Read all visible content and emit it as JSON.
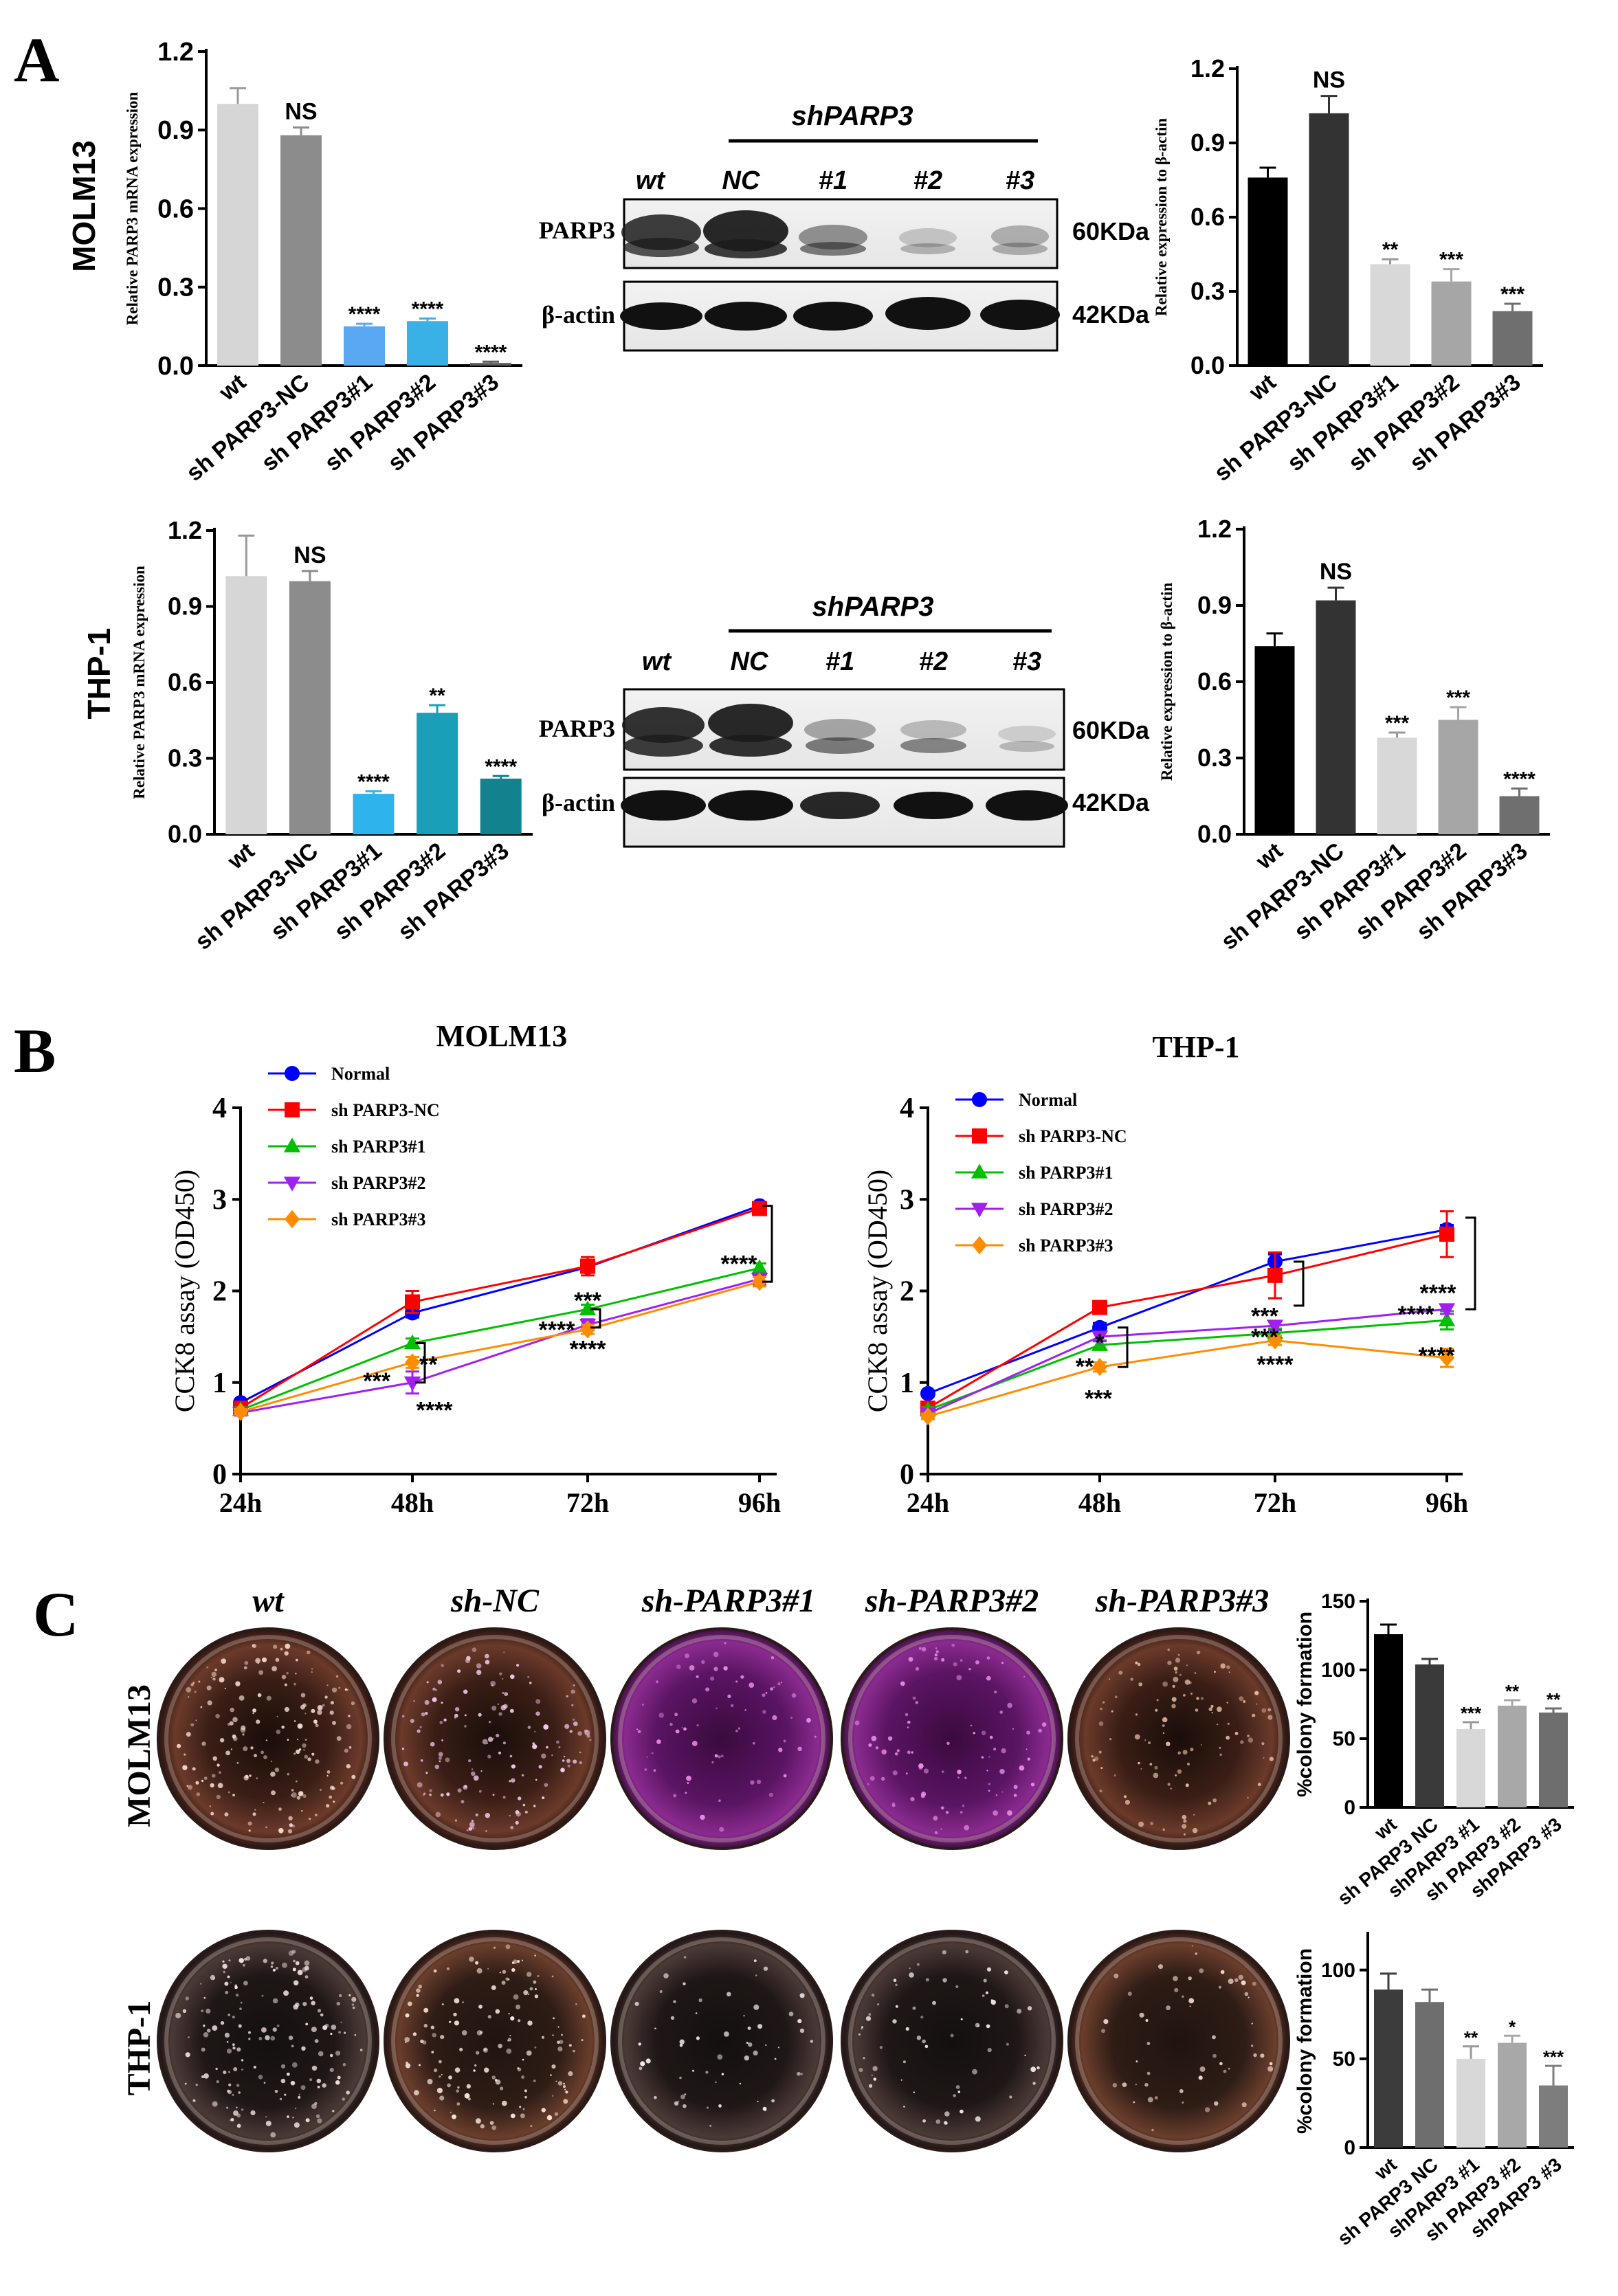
{
  "panels": {
    "A": "A",
    "B": "B",
    "C": "C"
  },
  "panel_a": {
    "row_labels": [
      "MOLM13",
      "THP-1"
    ],
    "blot_headers": {
      "group": "shPARP3",
      "lanes": [
        "wt",
        "NC",
        "#1",
        "#2",
        "#3"
      ]
    },
    "blot_rows": {
      "protein": [
        "PARP3",
        "β-actin"
      ],
      "kda": [
        "60KDa",
        "42KDa"
      ]
    }
  },
  "panel_c": {
    "plate_labels": [
      "wt",
      "sh-NC",
      "sh-PARP3#1",
      "sh-PARP3#2",
      "sh-PARP3#3"
    ],
    "row_labels": [
      "MOLM13",
      "THP-1"
    ]
  },
  "colors": {
    "qpcr_molm13": [
      "#d6d6d6",
      "#8c8c8c",
      "#5aa7f2",
      "#3ab1e6",
      "#5b5b5b"
    ],
    "qpcr_thp1": [
      "#d6d6d6",
      "#8c8c8c",
      "#2fb3ec",
      "#19a0b8",
      "#13828f"
    ],
    "wb_bars": [
      "#000000",
      "#333333",
      "#d8d8d8",
      "#a6a6a6",
      "#6f6f6f"
    ],
    "colony_molm13": [
      "#000000",
      "#3a3a3a",
      "#d8d8d8",
      "#a8a8a8",
      "#6e6e6e"
    ],
    "colony_thp1": [
      "#3c3c3c",
      "#6e6e6e",
      "#d8d8d8",
      "#a8a8a8",
      "#7d7d7d"
    ],
    "cck8": [
      "#0000ff",
      "#ff0000",
      "#00c000",
      "#a020f0",
      "#ff8c00"
    ]
  },
  "chart_data": [
    {
      "id": "qpcr_molm13",
      "type": "bar",
      "ylabel": "Relative PARP3 mRNA expression",
      "categories": [
        "wt",
        "sh PARP3-NC",
        "sh PARP3#1",
        "sh PARP3#2",
        "sh PARP3#3"
      ],
      "values": [
        1.0,
        0.88,
        0.15,
        0.17,
        0.01
      ],
      "errors": [
        0.06,
        0.03,
        0.01,
        0.01,
        0.005
      ],
      "annotations": [
        "",
        "NS",
        "****",
        "****",
        "****"
      ],
      "ylim": [
        0,
        1.2
      ],
      "yticks": [
        "0.0",
        "0.3",
        "0.6",
        "0.9",
        "1.2"
      ]
    },
    {
      "id": "wb_molm13",
      "type": "bar",
      "ylabel": "Relative expression to β-actin",
      "categories": [
        "wt",
        "sh PARP3-NC",
        "sh PARP3#1",
        "sh PARP3#2",
        "sh PARP3#3"
      ],
      "values": [
        0.76,
        1.02,
        0.41,
        0.34,
        0.22
      ],
      "errors": [
        0.04,
        0.07,
        0.02,
        0.05,
        0.03
      ],
      "annotations": [
        "",
        "NS",
        "**",
        "***",
        "***"
      ],
      "ylim": [
        0,
        1.2
      ],
      "yticks": [
        "0.0",
        "0.3",
        "0.6",
        "0.9",
        "1.2"
      ]
    },
    {
      "id": "qpcr_thp1",
      "type": "bar",
      "ylabel": "Relative PARP3 mRNA expression",
      "categories": [
        "wt",
        "sh PARP3-NC",
        "sh PARP3#1",
        "sh PARP3#2",
        "sh PARP3#3"
      ],
      "values": [
        1.02,
        1.0,
        0.16,
        0.48,
        0.22
      ],
      "errors": [
        0.16,
        0.04,
        0.01,
        0.03,
        0.01
      ],
      "annotations": [
        "",
        "NS",
        "****",
        "**",
        "****"
      ],
      "ylim": [
        0,
        1.2
      ],
      "yticks": [
        "0.0",
        "0.3",
        "0.6",
        "0.9",
        "1.2"
      ]
    },
    {
      "id": "wb_thp1",
      "type": "bar",
      "ylabel": "Relative expression to β-actin",
      "categories": [
        "wt",
        "sh PARP3-NC",
        "sh PARP3#1",
        "sh PARP3#2",
        "sh PARP3#3"
      ],
      "values": [
        0.74,
        0.92,
        0.38,
        0.45,
        0.15
      ],
      "errors": [
        0.05,
        0.05,
        0.02,
        0.05,
        0.03
      ],
      "annotations": [
        "",
        "NS",
        "***",
        "***",
        "****"
      ],
      "ylim": [
        0,
        1.2
      ],
      "yticks": [
        "0.0",
        "0.3",
        "0.6",
        "0.9",
        "1.2"
      ]
    },
    {
      "id": "cck8_molm13",
      "type": "line",
      "title": "MOLM13",
      "ylabel": "CCK8 assay (OD450)",
      "x": [
        "24h",
        "48h",
        "72h",
        "96h"
      ],
      "ylim": [
        0,
        4
      ],
      "yticks": [
        "0",
        "1",
        "2",
        "3",
        "4"
      ],
      "series": [
        {
          "name": "Normal",
          "values": [
            0.78,
            1.76,
            2.26,
            2.93
          ],
          "errors": [
            0.03,
            0.05,
            0.05,
            0.04
          ]
        },
        {
          "name": "sh PARP3-NC",
          "values": [
            0.72,
            1.88,
            2.27,
            2.9
          ],
          "errors": [
            0.03,
            0.12,
            0.1,
            0.05
          ]
        },
        {
          "name": "sh PARP3#1",
          "values": [
            0.7,
            1.43,
            1.8,
            2.25
          ],
          "errors": [
            0.03,
            0.05,
            0.05,
            0.05
          ]
        },
        {
          "name": "sh PARP3#2",
          "values": [
            0.67,
            1.0,
            1.63,
            2.13
          ],
          "errors": [
            0.03,
            0.12,
            0.06,
            0.06
          ]
        },
        {
          "name": "sh PARP3#3",
          "values": [
            0.68,
            1.22,
            1.58,
            2.1
          ],
          "errors": [
            0.03,
            0.06,
            0.05,
            0.05
          ]
        }
      ],
      "annotations": [
        {
          "x": "48h",
          "text": "**"
        },
        {
          "x": "48h",
          "text": "***"
        },
        {
          "x": "48h",
          "text": "****"
        },
        {
          "x": "72h",
          "text": "***"
        },
        {
          "x": "72h",
          "text": "****"
        },
        {
          "x": "72h",
          "text": "****"
        },
        {
          "x": "96h",
          "text": "****"
        }
      ]
    },
    {
      "id": "cck8_thp1",
      "type": "line",
      "title": "THP-1",
      "ylabel": "CCK8 assay (OD450)",
      "x": [
        "24h",
        "48h",
        "72h",
        "96h"
      ],
      "ylim": [
        0,
        4
      ],
      "yticks": [
        "0",
        "1",
        "2",
        "3",
        "4"
      ],
      "series": [
        {
          "name": "Normal",
          "values": [
            0.88,
            1.6,
            2.32,
            2.67
          ],
          "errors": [
            0.03,
            0.05,
            0.08,
            0.05
          ]
        },
        {
          "name": "sh PARP3-NC",
          "values": [
            0.72,
            1.82,
            2.17,
            2.62
          ],
          "errors": [
            0.03,
            0.05,
            0.25,
            0.25
          ]
        },
        {
          "name": "sh PARP3#1",
          "values": [
            0.7,
            1.41,
            1.54,
            1.68
          ],
          "errors": [
            0.03,
            0.05,
            0.05,
            0.1
          ]
        },
        {
          "name": "sh PARP3#2",
          "values": [
            0.66,
            1.5,
            1.62,
            1.8
          ],
          "errors": [
            0.03,
            0.05,
            0.05,
            0.05
          ]
        },
        {
          "name": "sh PARP3#3",
          "values": [
            0.63,
            1.17,
            1.46,
            1.27
          ],
          "errors": [
            0.03,
            0.05,
            0.05,
            0.1
          ]
        }
      ],
      "annotations": [
        {
          "x": "48h",
          "text": "*"
        },
        {
          "x": "48h",
          "text": "**"
        },
        {
          "x": "48h",
          "text": "***"
        },
        {
          "x": "72h",
          "text": "***"
        },
        {
          "x": "72h",
          "text": "***"
        },
        {
          "x": "72h",
          "text": "****"
        },
        {
          "x": "96h",
          "text": "****"
        },
        {
          "x": "96h",
          "text": "****"
        },
        {
          "x": "96h",
          "text": "****"
        }
      ]
    },
    {
      "id": "colony_molm13",
      "type": "bar",
      "ylabel": "%colony formation",
      "categories": [
        "wt",
        "sh PARP3 NC",
        "shPARP3 #1",
        "sh PARP3 #2",
        "shPARP3 #3"
      ],
      "values": [
        126,
        104,
        57,
        74,
        69
      ],
      "errors": [
        7,
        4,
        5,
        4,
        3
      ],
      "annotations": [
        "",
        "",
        "***",
        "**",
        "**"
      ],
      "ylim": [
        0,
        150
      ],
      "yticks": [
        "0",
        "50",
        "100",
        "150"
      ]
    },
    {
      "id": "colony_thp1",
      "type": "bar",
      "ylabel": "%colony formation",
      "categories": [
        "wt",
        "sh PARP3 NC",
        "shPARP3 #1",
        "sh PARP3 #2",
        "shPARP3 #3"
      ],
      "values": [
        89,
        82,
        50,
        59,
        35
      ],
      "errors": [
        9,
        7,
        7,
        4,
        11
      ],
      "annotations": [
        "",
        "",
        "**",
        "*",
        "***"
      ],
      "ylim": [
        0,
        120
      ],
      "yticks": [
        "0",
        "50",
        "100"
      ]
    }
  ]
}
